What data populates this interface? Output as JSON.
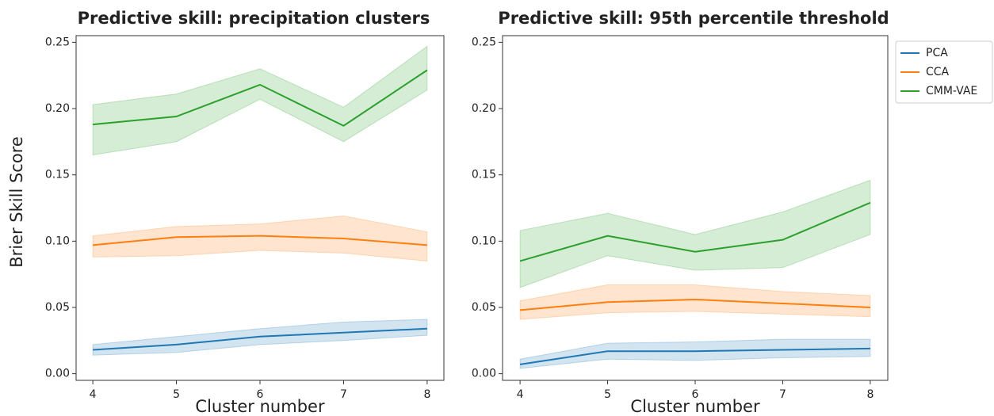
{
  "chart_data": [
    {
      "type": "line",
      "title": "Predictive skill: precipitation clusters",
      "xlabel": "Cluster number",
      "ylabel": "Brier Skill Score",
      "x": [
        4,
        5,
        6,
        7,
        8
      ],
      "xlim": [
        3.8,
        8.2
      ],
      "xticks": [
        4,
        5,
        6,
        7,
        8
      ],
      "ylim": [
        -0.005,
        0.255
      ],
      "yticks": [
        {
          "value": 0,
          "label": "0.00"
        },
        {
          "value": 0.05,
          "label": "0.05"
        },
        {
          "value": 0.1,
          "label": "0.10"
        },
        {
          "value": 0.15,
          "label": "0.15"
        },
        {
          "value": 0.2,
          "label": "0.20"
        },
        {
          "value": 0.25,
          "label": "0.25"
        }
      ],
      "series": [
        {
          "color": "#1f77b4",
          "values": [
            0.018,
            0.022,
            0.028,
            0.031,
            0.034
          ],
          "lower": [
            0.014,
            0.016,
            0.022,
            0.025,
            0.029
          ],
          "upper": [
            0.022,
            0.028,
            0.034,
            0.039,
            0.041
          ]
        },
        {
          "color": "#ff7f0e",
          "values": [
            0.097,
            0.103,
            0.104,
            0.102,
            0.097
          ],
          "lower": [
            0.088,
            0.089,
            0.093,
            0.091,
            0.085
          ],
          "upper": [
            0.104,
            0.111,
            0.113,
            0.119,
            0.107
          ]
        },
        {
          "color": "#2ca02c",
          "values": [
            0.188,
            0.194,
            0.218,
            0.187,
            0.229
          ],
          "lower": [
            0.165,
            0.175,
            0.207,
            0.175,
            0.214
          ],
          "upper": [
            0.203,
            0.211,
            0.23,
            0.201,
            0.247
          ]
        }
      ]
    },
    {
      "type": "line",
      "title": "Predictive skill: 95th percentile threshold",
      "xlabel": "Cluster number",
      "legend": "outside right",
      "x": [
        4,
        5,
        6,
        7,
        8
      ],
      "xlim": [
        3.8,
        8.2
      ],
      "xticks": [
        4,
        5,
        6,
        7,
        8
      ],
      "ylim": [
        -0.005,
        0.255
      ],
      "yticks": [
        {
          "value": 0,
          "label": "0.00"
        },
        {
          "value": 0.05,
          "label": "0.05"
        },
        {
          "value": 0.1,
          "label": "0.10"
        },
        {
          "value": 0.15,
          "label": "0.15"
        },
        {
          "value": 0.2,
          "label": "0.20"
        },
        {
          "value": 0.25,
          "label": "0.25"
        }
      ],
      "series": [
        {
          "name": "PCA",
          "color": "#1f77b4",
          "values": [
            0.007,
            0.017,
            0.017,
            0.018,
            0.019
          ],
          "lower": [
            0.004,
            0.011,
            0.01,
            0.012,
            0.013
          ],
          "upper": [
            0.011,
            0.023,
            0.024,
            0.026,
            0.026
          ]
        },
        {
          "name": "CCA",
          "color": "#ff7f0e",
          "values": [
            0.048,
            0.054,
            0.056,
            0.053,
            0.05
          ],
          "lower": [
            0.041,
            0.046,
            0.047,
            0.045,
            0.043
          ],
          "upper": [
            0.055,
            0.067,
            0.067,
            0.062,
            0.059
          ]
        },
        {
          "name": "CMM-VAE",
          "color": "#2ca02c",
          "values": [
            0.085,
            0.104,
            0.092,
            0.101,
            0.129
          ],
          "lower": [
            0.065,
            0.089,
            0.078,
            0.08,
            0.105
          ],
          "upper": [
            0.108,
            0.121,
            0.105,
            0.122,
            0.146
          ]
        }
      ]
    }
  ]
}
